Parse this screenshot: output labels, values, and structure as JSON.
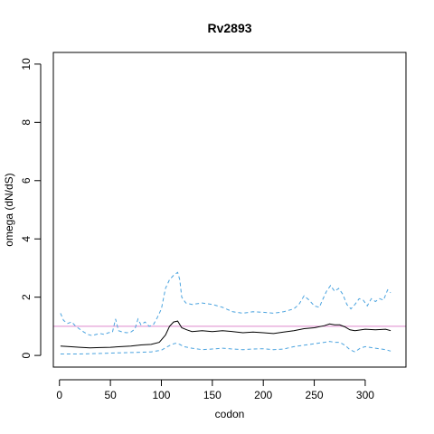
{
  "chart_data": {
    "type": "line",
    "title": "Rv2893",
    "xlabel": "codon",
    "ylabel": "omega (dN/dS)",
    "xlim": [
      -6,
      340
    ],
    "ylim": [
      -0.4,
      10.4
    ],
    "x_ticks": [
      0,
      50,
      100,
      150,
      200,
      250,
      300
    ],
    "y_ticks": [
      0,
      2,
      4,
      6,
      8,
      10
    ],
    "grid": false,
    "reference_line": {
      "y": 1.0,
      "color": "#dd88cc"
    },
    "series": [
      {
        "role": "estimate",
        "color": "#000000",
        "dash": "solid",
        "points": [
          [
            1,
            0.32
          ],
          [
            10,
            0.3
          ],
          [
            20,
            0.28
          ],
          [
            30,
            0.26
          ],
          [
            40,
            0.27
          ],
          [
            50,
            0.28
          ],
          [
            60,
            0.3
          ],
          [
            70,
            0.32
          ],
          [
            80,
            0.36
          ],
          [
            90,
            0.38
          ],
          [
            98,
            0.45
          ],
          [
            104,
            0.7
          ],
          [
            108,
            1.0
          ],
          [
            112,
            1.15
          ],
          [
            116,
            1.18
          ],
          [
            120,
            0.95
          ],
          [
            125,
            0.88
          ],
          [
            130,
            0.82
          ],
          [
            140,
            0.85
          ],
          [
            150,
            0.82
          ],
          [
            160,
            0.85
          ],
          [
            170,
            0.82
          ],
          [
            180,
            0.78
          ],
          [
            190,
            0.8
          ],
          [
            200,
            0.78
          ],
          [
            210,
            0.75
          ],
          [
            220,
            0.8
          ],
          [
            230,
            0.85
          ],
          [
            240,
            0.92
          ],
          [
            250,
            0.95
          ],
          [
            260,
            1.02
          ],
          [
            265,
            1.08
          ],
          [
            270,
            1.05
          ],
          [
            275,
            1.05
          ],
          [
            280,
            0.98
          ],
          [
            285,
            0.88
          ],
          [
            290,
            0.85
          ],
          [
            300,
            0.9
          ],
          [
            310,
            0.88
          ],
          [
            320,
            0.9
          ],
          [
            325,
            0.85
          ]
        ]
      },
      {
        "role": "upper",
        "color": "#4aa3df",
        "dash": "dashed",
        "points": [
          [
            1,
            1.45
          ],
          [
            4,
            1.2
          ],
          [
            8,
            1.1
          ],
          [
            12,
            1.15
          ],
          [
            16,
            1.0
          ],
          [
            20,
            0.9
          ],
          [
            24,
            0.8
          ],
          [
            28,
            0.72
          ],
          [
            32,
            0.68
          ],
          [
            36,
            0.72
          ],
          [
            40,
            0.75
          ],
          [
            44,
            0.72
          ],
          [
            48,
            0.78
          ],
          [
            52,
            0.8
          ],
          [
            55,
            1.25
          ],
          [
            58,
            0.85
          ],
          [
            62,
            0.8
          ],
          [
            66,
            0.78
          ],
          [
            70,
            0.8
          ],
          [
            74,
            0.9
          ],
          [
            77,
            1.25
          ],
          [
            80,
            1.05
          ],
          [
            84,
            1.15
          ],
          [
            88,
            1.0
          ],
          [
            92,
            1.05
          ],
          [
            96,
            1.3
          ],
          [
            100,
            1.6
          ],
          [
            104,
            2.3
          ],
          [
            108,
            2.6
          ],
          [
            112,
            2.75
          ],
          [
            116,
            2.85
          ],
          [
            118,
            2.6
          ],
          [
            120,
            2.0
          ],
          [
            124,
            1.8
          ],
          [
            130,
            1.75
          ],
          [
            140,
            1.8
          ],
          [
            150,
            1.75
          ],
          [
            160,
            1.65
          ],
          [
            170,
            1.5
          ],
          [
            180,
            1.45
          ],
          [
            190,
            1.5
          ],
          [
            200,
            1.48
          ],
          [
            210,
            1.45
          ],
          [
            220,
            1.5
          ],
          [
            230,
            1.6
          ],
          [
            235,
            1.75
          ],
          [
            240,
            2.05
          ],
          [
            245,
            1.9
          ],
          [
            250,
            1.7
          ],
          [
            255,
            1.65
          ],
          [
            258,
            1.9
          ],
          [
            262,
            2.2
          ],
          [
            266,
            2.4
          ],
          [
            270,
            2.2
          ],
          [
            274,
            2.3
          ],
          [
            278,
            2.1
          ],
          [
            282,
            1.75
          ],
          [
            286,
            1.6
          ],
          [
            290,
            1.75
          ],
          [
            294,
            1.95
          ],
          [
            298,
            1.9
          ],
          [
            302,
            1.7
          ],
          [
            306,
            1.95
          ],
          [
            310,
            1.85
          ],
          [
            314,
            1.95
          ],
          [
            318,
            1.9
          ],
          [
            322,
            2.25
          ],
          [
            325,
            2.15
          ]
        ]
      },
      {
        "role": "lower",
        "color": "#4aa3df",
        "dash": "dashed",
        "points": [
          [
            1,
            0.05
          ],
          [
            10,
            0.05
          ],
          [
            20,
            0.05
          ],
          [
            30,
            0.06
          ],
          [
            40,
            0.07
          ],
          [
            50,
            0.08
          ],
          [
            60,
            0.09
          ],
          [
            70,
            0.1
          ],
          [
            80,
            0.11
          ],
          [
            90,
            0.12
          ],
          [
            100,
            0.18
          ],
          [
            105,
            0.28
          ],
          [
            110,
            0.38
          ],
          [
            114,
            0.42
          ],
          [
            118,
            0.38
          ],
          [
            122,
            0.3
          ],
          [
            130,
            0.25
          ],
          [
            140,
            0.2
          ],
          [
            150,
            0.22
          ],
          [
            160,
            0.25
          ],
          [
            170,
            0.22
          ],
          [
            180,
            0.2
          ],
          [
            190,
            0.22
          ],
          [
            200,
            0.23
          ],
          [
            210,
            0.2
          ],
          [
            220,
            0.22
          ],
          [
            230,
            0.3
          ],
          [
            240,
            0.35
          ],
          [
            250,
            0.4
          ],
          [
            260,
            0.45
          ],
          [
            265,
            0.48
          ],
          [
            270,
            0.45
          ],
          [
            275,
            0.45
          ],
          [
            280,
            0.35
          ],
          [
            285,
            0.2
          ],
          [
            290,
            0.12
          ],
          [
            295,
            0.25
          ],
          [
            300,
            0.3
          ],
          [
            310,
            0.25
          ],
          [
            320,
            0.2
          ],
          [
            325,
            0.15
          ]
        ]
      }
    ]
  }
}
